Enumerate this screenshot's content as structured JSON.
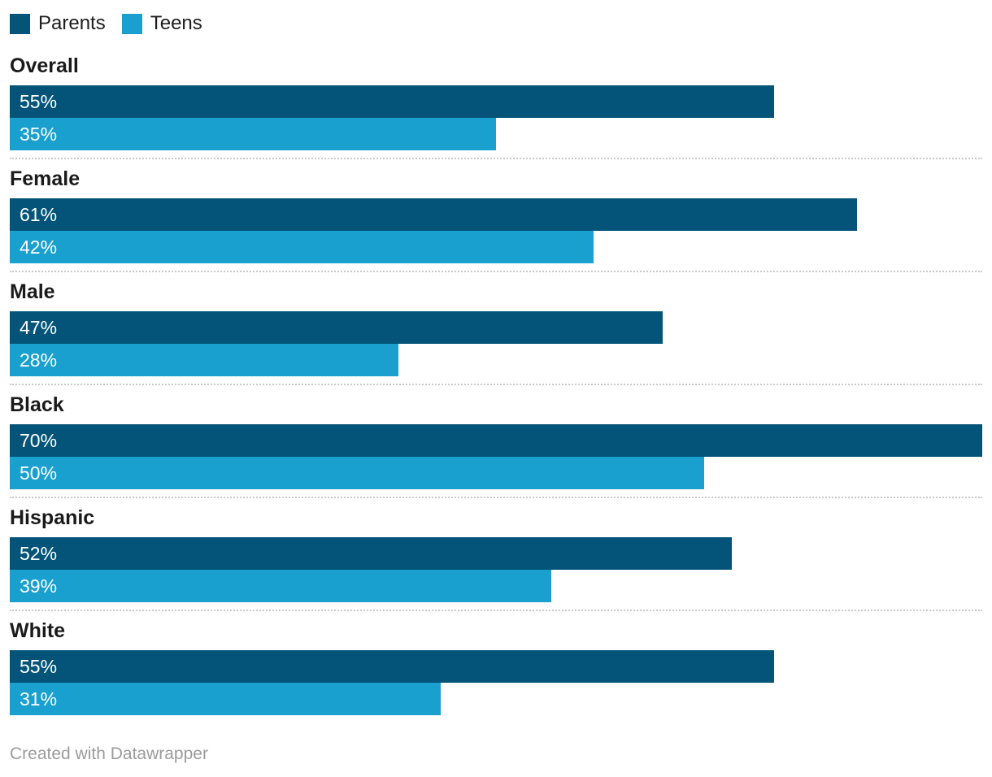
{
  "chart_data": {
    "type": "bar",
    "orientation": "horizontal",
    "categories": [
      "Overall",
      "Female",
      "Male",
      "Black",
      "Hispanic",
      "White"
    ],
    "series": [
      {
        "name": "Parents",
        "color": "#035478",
        "values": [
          55,
          61,
          47,
          70,
          52,
          55
        ]
      },
      {
        "name": "Teens",
        "color": "#1aa0ce",
        "values": [
          35,
          42,
          28,
          50,
          39,
          31
        ]
      }
    ],
    "value_suffix": "%",
    "xlim": [
      0,
      70
    ],
    "grid": false,
    "legend_position": "top-left",
    "value_labels": "inside-left",
    "separator_style": "dotted"
  },
  "footer": {
    "credit": "Created with Datawrapper"
  }
}
